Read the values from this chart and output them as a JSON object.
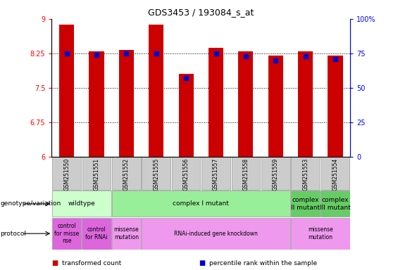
{
  "title": "GDS3453 / 193084_s_at",
  "samples": [
    "GSM251550",
    "GSM251551",
    "GSM251552",
    "GSM251555",
    "GSM251556",
    "GSM251557",
    "GSM251558",
    "GSM251559",
    "GSM251553",
    "GSM251554"
  ],
  "bar_values": [
    8.88,
    8.3,
    8.32,
    8.88,
    7.8,
    8.37,
    8.3,
    8.2,
    8.3,
    8.2
  ],
  "dot_values": [
    75,
    74,
    75,
    75,
    57,
    75,
    73,
    70,
    73,
    71
  ],
  "ylim_left": [
    6,
    9
  ],
  "ylim_right": [
    0,
    100
  ],
  "yticks_left": [
    6,
    6.75,
    7.5,
    8.25,
    9
  ],
  "yticks_right": [
    0,
    25,
    50,
    75,
    100
  ],
  "bar_color": "#cc0000",
  "dot_color": "#0000cc",
  "sample_box_color": "#cccccc",
  "genotype_groups": [
    {
      "label": "wildtype",
      "span": [
        0,
        2
      ],
      "color": "#ccffcc"
    },
    {
      "label": "complex I mutant",
      "span": [
        2,
        8
      ],
      "color": "#99ee99"
    },
    {
      "label": "complex\nII mutant",
      "span": [
        8,
        9
      ],
      "color": "#66cc66"
    },
    {
      "label": "complex\nIII mutant",
      "span": [
        9,
        10
      ],
      "color": "#66cc66"
    }
  ],
  "protocol_groups": [
    {
      "label": "control\nfor misse\nnse",
      "span": [
        0,
        1
      ],
      "color": "#dd66dd"
    },
    {
      "label": "control\nfor RNAi",
      "span": [
        1,
        2
      ],
      "color": "#dd66dd"
    },
    {
      "label": "missense\nmutation",
      "span": [
        2,
        3
      ],
      "color": "#ee99ee"
    },
    {
      "label": "RNAi-induced gene knockdown",
      "span": [
        3,
        8
      ],
      "color": "#ee99ee"
    },
    {
      "label": "missense\nmutation",
      "span": [
        8,
        10
      ],
      "color": "#ee99ee"
    }
  ],
  "legend_items": [
    {
      "color": "#cc0000",
      "label": "transformed count"
    },
    {
      "color": "#0000cc",
      "label": "percentile rank within the sample"
    }
  ],
  "left_labels": [
    {
      "text": "genotype/variation",
      "row": "geno"
    },
    {
      "text": "protocol",
      "row": "proto"
    }
  ]
}
